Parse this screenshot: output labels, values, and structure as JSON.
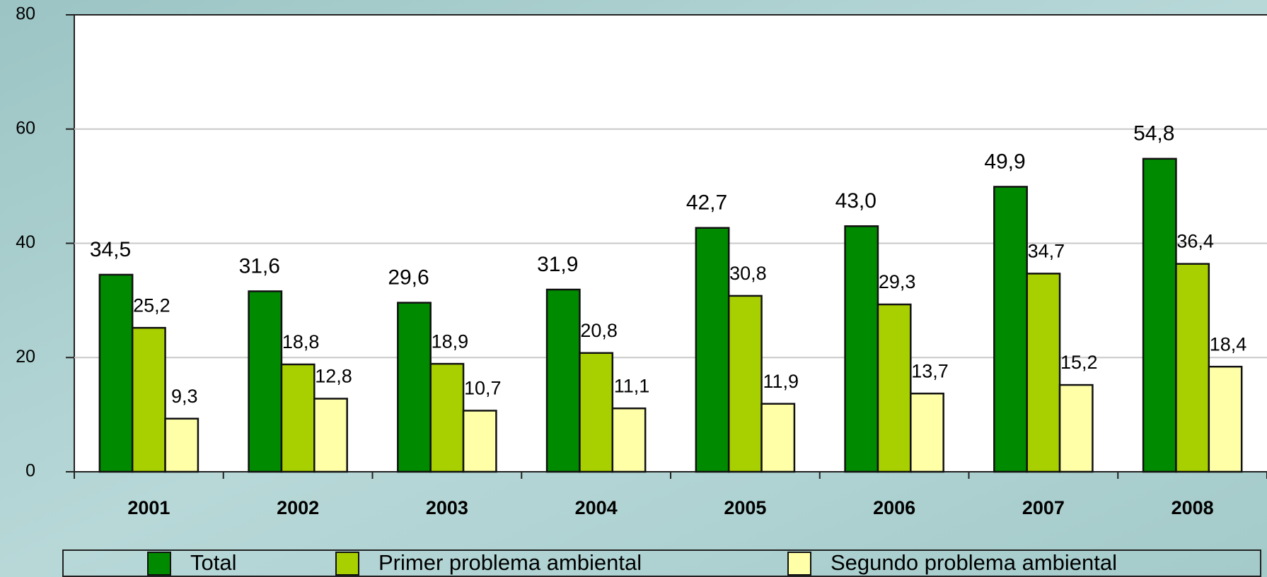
{
  "chart_data": {
    "type": "bar",
    "categories": [
      "2001",
      "2002",
      "2003",
      "2004",
      "2005",
      "2006",
      "2007",
      "2008"
    ],
    "series": [
      {
        "name": "Total",
        "color": "#008a00",
        "values": [
          34.5,
          31.6,
          29.6,
          31.9,
          42.7,
          43.0,
          49.9,
          54.8
        ],
        "value_labels": [
          "34,5",
          "31,6",
          "29,6",
          "31,9",
          "42,7",
          "43,0",
          "49,9",
          "54,8"
        ]
      },
      {
        "name": "Primer problema ambiental",
        "color": "#a8d000",
        "values": [
          25.2,
          18.8,
          18.9,
          20.8,
          30.8,
          29.3,
          34.7,
          36.4
        ],
        "value_labels": [
          "25,2",
          "18,8",
          "18,9",
          "20,8",
          "30,8",
          "29,3",
          "34,7",
          "36,4"
        ]
      },
      {
        "name": "Segundo problema ambiental",
        "color": "#ffffa8",
        "values": [
          9.3,
          12.8,
          10.7,
          11.1,
          11.9,
          13.7,
          15.2,
          18.4
        ],
        "value_labels": [
          "9,3",
          "12,8",
          "10,7",
          "11,1",
          "11,9",
          "13,7",
          "15,2",
          "18,4"
        ]
      }
    ],
    "ylim": [
      0,
      80
    ],
    "yticks": [
      0,
      20,
      40,
      60,
      80
    ],
    "grid": true,
    "legend": "bottom"
  }
}
